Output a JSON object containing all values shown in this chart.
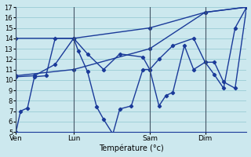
{
  "xlabel": "Température (°c)",
  "background_color": "#cce8ee",
  "grid_color": "#99ccd4",
  "line_color": "#1a3a99",
  "vline_color": "#445566",
  "ylim": [
    5,
    17
  ],
  "xlim": [
    0,
    100
  ],
  "day_labels": [
    "Ven",
    "Lun",
    "Sam",
    "Dim"
  ],
  "day_positions": [
    0,
    25,
    58,
    82
  ],
  "lines": [
    {
      "x": [
        0,
        2,
        5,
        8,
        13,
        17,
        25,
        27,
        31,
        35,
        38,
        42,
        45,
        50,
        55,
        58,
        62,
        65,
        68,
        73,
        77,
        82,
        86,
        90,
        95,
        100
      ],
      "y": [
        5,
        7,
        7.3,
        10.3,
        10.4,
        14,
        14,
        12.8,
        10.8,
        7.4,
        6.2,
        4.8,
        7.2,
        7.5,
        11.0,
        11.0,
        7.5,
        8.5,
        8.8,
        13.3,
        11.0,
        11.7,
        10.5,
        9.2,
        15.0,
        17.0
      ]
    },
    {
      "x": [
        0,
        25,
        58,
        82,
        100
      ],
      "y": [
        10.4,
        11.0,
        13.0,
        16.5,
        17.0
      ]
    },
    {
      "x": [
        0,
        25,
        58,
        82,
        100
      ],
      "y": [
        14.0,
        14.0,
        15.0,
        16.5,
        17.0
      ]
    },
    {
      "x": [
        0,
        8,
        17,
        25,
        31,
        38,
        45,
        55,
        58,
        62,
        68,
        77,
        82,
        86,
        90,
        95,
        100
      ],
      "y": [
        10.3,
        10.4,
        11.5,
        14.0,
        12.5,
        11.0,
        12.5,
        12.2,
        11.0,
        12.0,
        13.3,
        14.0,
        11.7,
        11.7,
        9.8,
        9.2,
        17.0
      ]
    }
  ]
}
